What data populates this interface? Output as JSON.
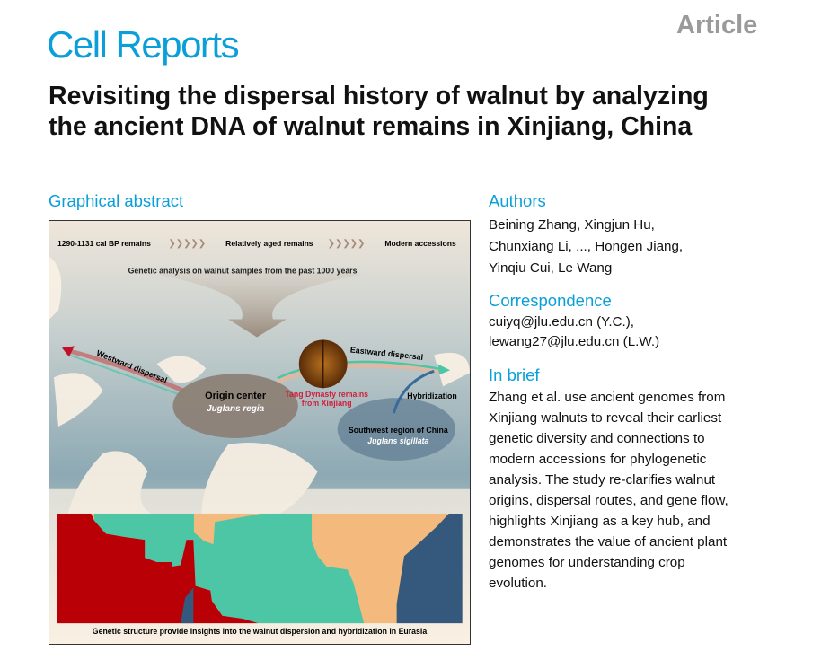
{
  "header": {
    "journal": "Cell Reports",
    "article_type": "Article"
  },
  "title": "Revisiting the dispersal history of walnut by analyzing the ancient DNA of walnut remains in Xinjiang, China",
  "graphical_abstract": {
    "heading": "Graphical abstract",
    "timeline": [
      "1290-1131 cal BP  remains",
      "Relatively aged remains",
      "Modern accessions"
    ],
    "analysis": "Genetic analysis on walnut samples from the past 1000 years",
    "westward": "Westward dispersal",
    "eastward": "Eastward dispersal",
    "origin": "Origin center",
    "origin_species": "Juglans regia",
    "tang_1": "Tang Dynasty remains",
    "tang_2": "from Xinjiang",
    "hybridization": "Hybridization",
    "southwest": "Southwest region of China",
    "southwest_species": "Juglans sigillata",
    "caption": "Genetic structure provide insights into the walnut dispersion and hybridization in Eurasia",
    "colors": {
      "red": "#b90006",
      "teal": "#4dc6a5",
      "orange": "#f3b97d",
      "blue": "#35587d"
    }
  },
  "authors": {
    "heading": "Authors",
    "lines": [
      "Beining Zhang, Xingjun Hu,",
      "Chunxiang Li, ..., Hongen Jiang,",
      "Yinqiu Cui, Le Wang"
    ]
  },
  "correspondence": {
    "heading": "Correspondence",
    "lines": [
      "cuiyq@jlu.edu.cn (Y.C.),",
      "lewang27@jlu.edu.cn (L.W.)"
    ]
  },
  "in_brief": {
    "heading": "In brief",
    "lines": [
      "Zhang et al. use ancient genomes from",
      "Xinjiang walnuts to reveal their earliest",
      "genetic diversity and connections to",
      "modern accessions for phylogenetic",
      "analysis. The study re-clarifies walnut",
      "origins, dispersal routes, and gene flow,",
      "highlights Xinjiang as a key hub, and",
      "demonstrates the value of ancient plant",
      "genomes for understanding crop",
      "evolution."
    ]
  }
}
